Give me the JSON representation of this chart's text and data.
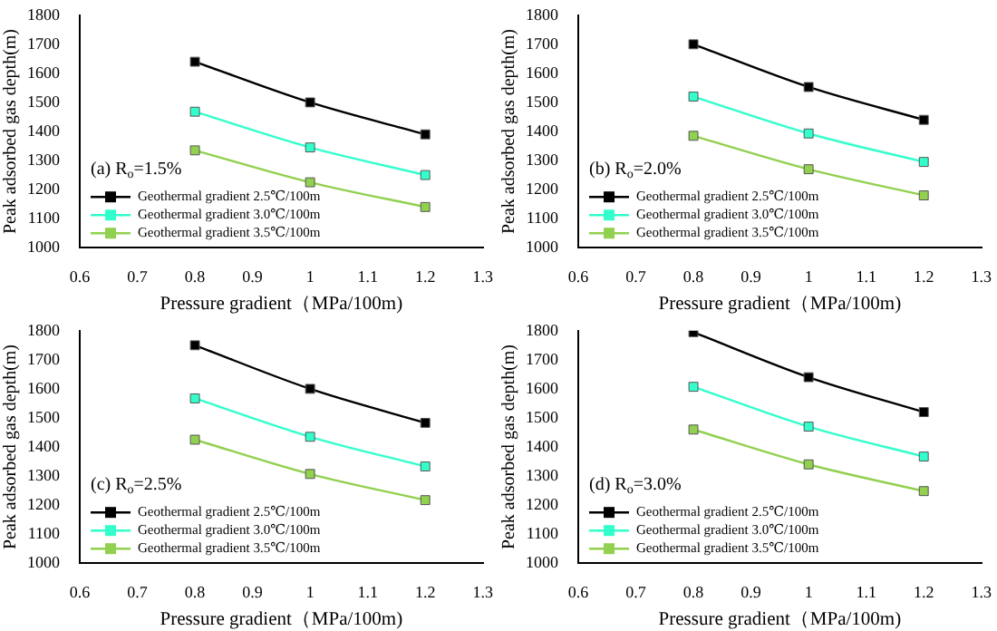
{
  "chart_data": [
    {
      "type": "line",
      "xlabel": "Pressure gradient（MPa/100m)",
      "ylabel": "Peak adsorbed gas depth(m)",
      "annotations": [
        "(a) R$_{o}$=1.5%"
      ],
      "x": [
        0.8,
        1,
        1.2
      ],
      "xlim": [
        0.6,
        1.3
      ],
      "xticks": [
        0.6,
        0.7,
        0.8,
        0.9,
        1,
        1.1,
        1.2,
        1.3
      ],
      "ylim": [
        1000,
        1800
      ],
      "yticks": [
        1000,
        1100,
        1200,
        1300,
        1400,
        1500,
        1600,
        1700,
        1800
      ],
      "grid": false,
      "legend": "bottom left",
      "marker": "square",
      "line_style": "solid",
      "series": [
        {
          "name": "Geothermal gradient 2.5℃/100m",
          "color": "#000000",
          "values": [
            1640,
            1500,
            1390
          ]
        },
        {
          "name": "Geothermal gradient 3.0℃/100m",
          "color": "#33ffcc",
          "values": [
            1468,
            1345,
            1250
          ]
        },
        {
          "name": "Geothermal gradient 3.5℃/100m",
          "color": "#92d050",
          "values": [
            1335,
            1225,
            1140
          ]
        }
      ]
    },
    {
      "type": "line",
      "xlabel": "Pressure gradient（MPa/100m)",
      "ylabel": "Peak adsorbed gas depth(m)",
      "annotations": [
        "(b) R$_{o}$=2.0%"
      ],
      "x": [
        0.8,
        1,
        1.2
      ],
      "xlim": [
        0.6,
        1.3
      ],
      "xticks": [
        0.6,
        0.7,
        0.8,
        0.9,
        1,
        1.1,
        1.2,
        1.3
      ],
      "ylim": [
        1000,
        1800
      ],
      "yticks": [
        1000,
        1100,
        1200,
        1300,
        1400,
        1500,
        1600,
        1700,
        1800
      ],
      "grid": false,
      "legend": "bottom left",
      "marker": "square",
      "line_style": "solid",
      "series": [
        {
          "name": "Geothermal gradient 2.5℃/100m",
          "color": "#000000",
          "values": [
            1700,
            1553,
            1440
          ]
        },
        {
          "name": "Geothermal gradient 3.0℃/100m",
          "color": "#33ffcc",
          "values": [
            1520,
            1393,
            1295
          ]
        },
        {
          "name": "Geothermal gradient 3.5℃/100m",
          "color": "#92d050",
          "values": [
            1385,
            1270,
            1180
          ]
        }
      ]
    },
    {
      "type": "line",
      "xlabel": "Pressure gradient（MPa/100m)",
      "ylabel": "Peak adsorbed gas depth(m)",
      "annotations": [
        "(c) R$_{o}$=2.5%"
      ],
      "x": [
        0.8,
        1,
        1.2
      ],
      "xlim": [
        0.6,
        1.3
      ],
      "xticks": [
        0.6,
        0.7,
        0.8,
        0.9,
        1,
        1.1,
        1.2,
        1.3
      ],
      "ylim": [
        1000,
        1800
      ],
      "yticks": [
        1000,
        1100,
        1200,
        1300,
        1400,
        1500,
        1600,
        1700,
        1800
      ],
      "grid": false,
      "legend": "bottom left",
      "marker": "square",
      "line_style": "solid",
      "series": [
        {
          "name": "Geothermal gradient 2.5℃/100m",
          "color": "#000000",
          "values": [
            1750,
            1600,
            1483
          ]
        },
        {
          "name": "Geothermal gradient 3.0℃/100m",
          "color": "#33ffcc",
          "values": [
            1567,
            1435,
            1333
          ]
        },
        {
          "name": "Geothermal gradient 3.5℃/100m",
          "color": "#92d050",
          "values": [
            1425,
            1307,
            1217
          ]
        }
      ]
    },
    {
      "type": "line",
      "xlabel": "Pressure gradient（MPa/100m)",
      "ylabel": "Peak adsorbed gas depth(m)",
      "annotations": [
        "(d) R$_{o}$=3.0%"
      ],
      "x": [
        0.8,
        1,
        1.2
      ],
      "xlim": [
        0.6,
        1.3
      ],
      "xticks": [
        0.6,
        0.7,
        0.8,
        0.9,
        1,
        1.1,
        1.2,
        1.3
      ],
      "ylim": [
        1000,
        1800
      ],
      "yticks": [
        1000,
        1100,
        1200,
        1300,
        1400,
        1500,
        1600,
        1700,
        1800
      ],
      "grid": false,
      "legend": "bottom left",
      "marker": "square",
      "line_style": "solid",
      "series": [
        {
          "name": "Geothermal gradient 2.5℃/100m",
          "color": "#000000",
          "values": [
            1795,
            1640,
            1520
          ]
        },
        {
          "name": "Geothermal gradient 3.0℃/100m",
          "color": "#33ffcc",
          "values": [
            1607,
            1470,
            1367
          ]
        },
        {
          "name": "Geothermal gradient 3.5℃/100m",
          "color": "#92d050",
          "values": [
            1460,
            1340,
            1248
          ]
        }
      ]
    }
  ]
}
